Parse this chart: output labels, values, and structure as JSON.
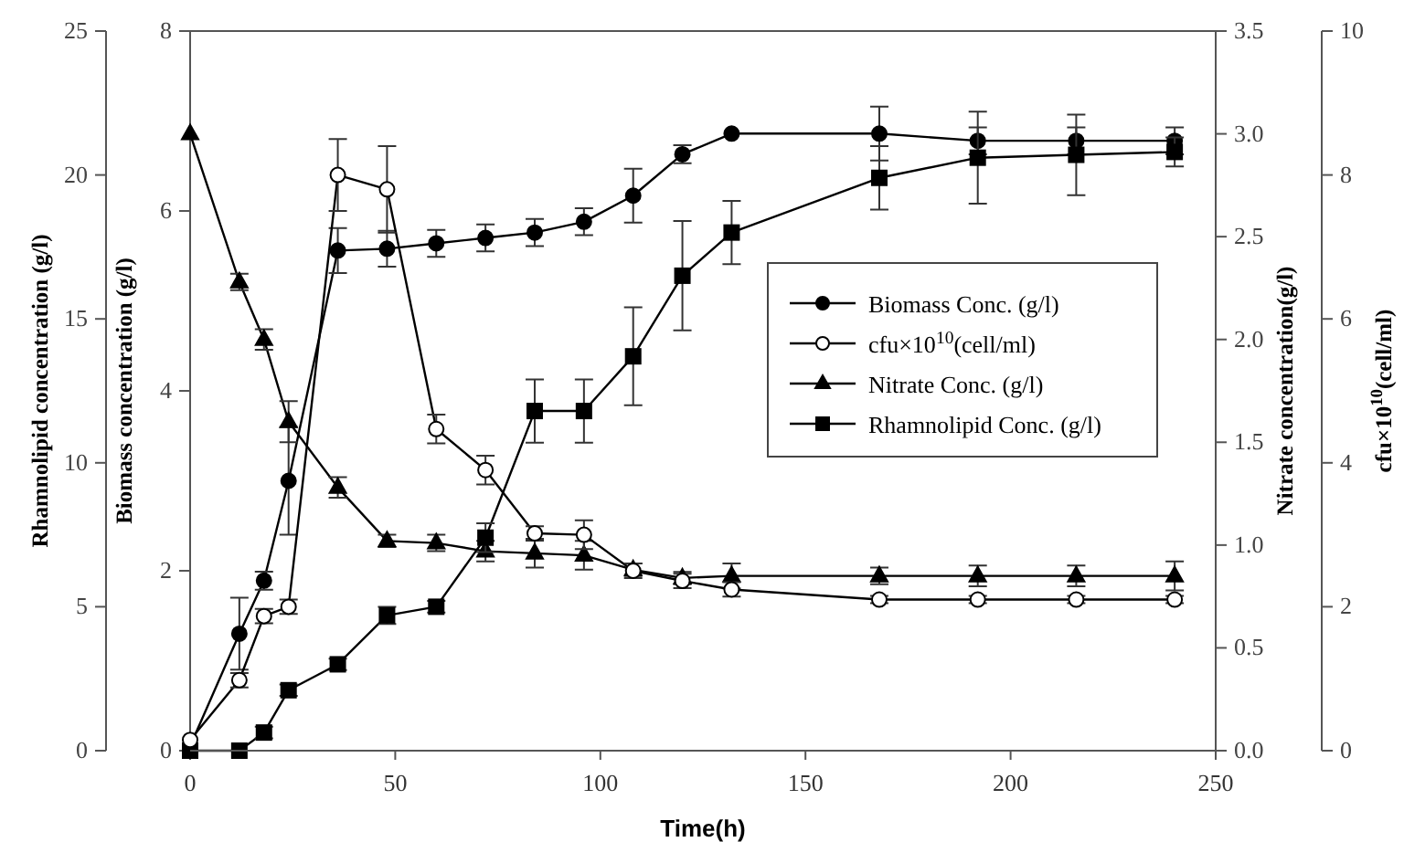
{
  "chart_data": [
    {
      "type": "line",
      "xlabel": "Time(h)",
      "ylabel": "Biomass concentration (g/l)",
      "y2label": "Nitrate concentration(g/l)",
      "y3label": "Rhamnolipid concentration (g/l)",
      "x": [
        0,
        12,
        18,
        24,
        36,
        48,
        60,
        72,
        84,
        96,
        108,
        120,
        132,
        168,
        192,
        216,
        240
      ],
      "xlim": [
        0,
        250
      ],
      "xticks": [
        0,
        50,
        100,
        150,
        200,
        250
      ],
      "ylim": [
        0,
        8
      ],
      "yticks": [
        0,
        2,
        4,
        6,
        8
      ],
      "y2lim": [
        0,
        3.5
      ],
      "y2ticks": [
        {
          "value": 0,
          "label": "0.0"
        },
        {
          "value": 0.5,
          "label": "0.5"
        },
        {
          "value": 1,
          "label": "1.0"
        },
        {
          "value": 1.5,
          "label": "1.5"
        },
        {
          "value": 2,
          "label": "2.0"
        },
        {
          "value": 2.5,
          "label": "2.5"
        },
        {
          "value": 3,
          "label": "3.0"
        },
        {
          "value": 3.5,
          "label": "3.5"
        }
      ],
      "y3lim": [
        0,
        25
      ],
      "y3ticks": [
        0,
        5,
        10,
        15,
        20,
        25
      ],
      "legend": "right",
      "line_style": "solid",
      "series": [
        {
          "name": "Biomass Conc. (g/l)",
          "color": "#000000",
          "marker": "circle",
          "values": [
            0.05,
            1.3,
            1.89,
            3.0,
            5.56,
            5.58,
            5.64,
            5.7,
            5.76,
            5.88,
            6.17,
            6.63,
            6.86,
            6.86,
            6.78,
            6.78,
            6.78
          ],
          "errors": [
            null,
            0.4,
            0.1,
            0.6,
            0.25,
            0.2,
            0.15,
            0.15,
            0.15,
            0.15,
            0.3,
            0.1,
            null,
            0.3,
            0.15,
            0.15,
            0.15
          ]
        },
        {
          "name": "Nitrate Conc. (g/l)",
          "color": "#000000",
          "marker": "triangle",
          "axis": "y2",
          "values": [
            3.0,
            2.28,
            2.0,
            1.6,
            1.28,
            1.02,
            1.01,
            0.97,
            0.96,
            0.95,
            0.88,
            0.84,
            0.85,
            0.85,
            0.85,
            0.85,
            0.85
          ],
          "errors": [
            null,
            0.04,
            0.05,
            0.1,
            0.05,
            0.03,
            0.04,
            0.05,
            0.07,
            0.07,
            0.03,
            0.03,
            0.06,
            0.04,
            0.05,
            0.05,
            0.07
          ]
        },
        {
          "name": "Rhamnolipid Conc. (g/l)",
          "color": "#000000",
          "marker": "square",
          "axis": "y3",
          "values": [
            0,
            0,
            0.63,
            2.1,
            3.0,
            4.7,
            5.0,
            7.4,
            11.8,
            11.8,
            13.7,
            16.5,
            18.0,
            19.9,
            20.6,
            20.7,
            20.8
          ],
          "errors": [
            null,
            null,
            0.2,
            0.2,
            0.2,
            0.3,
            0.2,
            0.5,
            1.1,
            1.1,
            1.7,
            1.9,
            1.1,
            1.1,
            1.6,
            1.4,
            0.5
          ]
        }
      ]
    },
    {
      "type": "line",
      "ylabel": "cfu×10$^{10}$(cell/ml)",
      "tick_labels": "y",
      "legend": "right",
      "x": [
        0,
        12,
        18,
        24,
        36,
        48,
        60,
        72,
        84,
        96,
        108,
        120,
        132,
        168,
        192,
        216,
        240
      ],
      "xlim": [
        0,
        250
      ],
      "ylim": [
        0,
        10
      ],
      "yticks": [
        0,
        2,
        4,
        6,
        8,
        10
      ],
      "series": [
        {
          "name": "cfu×10$^{10}$(cell/ml)",
          "color": "#000000",
          "marker": "circle",
          "values": [
            0.15,
            0.98,
            1.87,
            2.0,
            8.0,
            7.8,
            4.47,
            3.9,
            3.02,
            3.0,
            2.5,
            2.36,
            2.24,
            2.1,
            2.1,
            2.1,
            2.1
          ],
          "errors": [
            null,
            0.1,
            0.1,
            0.1,
            0.5,
            0.6,
            0.2,
            0.2,
            0.1,
            0.2,
            0.1,
            0.1,
            0.1,
            0.05,
            0.05,
            0.05,
            0.05
          ]
        }
      ]
    }
  ]
}
